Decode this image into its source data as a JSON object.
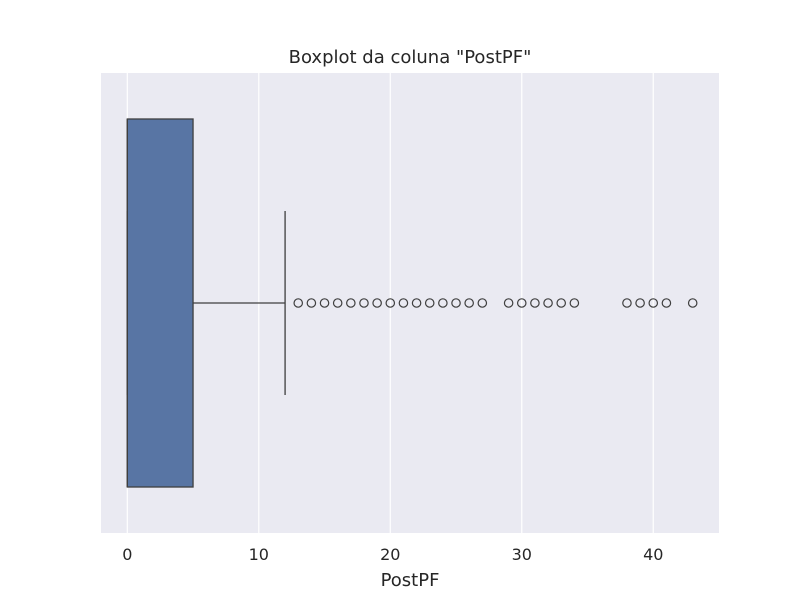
{
  "chart_data": {
    "type": "boxplot",
    "title": "Boxplot da coluna \"PostPF\"",
    "xlabel": "PostPF",
    "ylabel": "",
    "xlim": [
      -2.0,
      45.0
    ],
    "xticks": [
      0,
      10,
      20,
      30,
      40
    ],
    "xtick_labels": [
      "0",
      "10",
      "20",
      "30",
      "40"
    ],
    "orientation": "horizontal",
    "grid": true,
    "background_color": "#EAEAF2",
    "grid_color": "#FFFFFF",
    "box_color": "#5875A4",
    "line_color": "#3F3F3F",
    "box": {
      "min_whisker": 0,
      "q1": 0,
      "median": 0,
      "q3": 5,
      "max_whisker": 12
    },
    "outliers": [
      13,
      14,
      15,
      16,
      17,
      18,
      19,
      20,
      21,
      22,
      23,
      24,
      25,
      26,
      27,
      29,
      30,
      31,
      32,
      33,
      34,
      38,
      39,
      40,
      41,
      43
    ]
  }
}
